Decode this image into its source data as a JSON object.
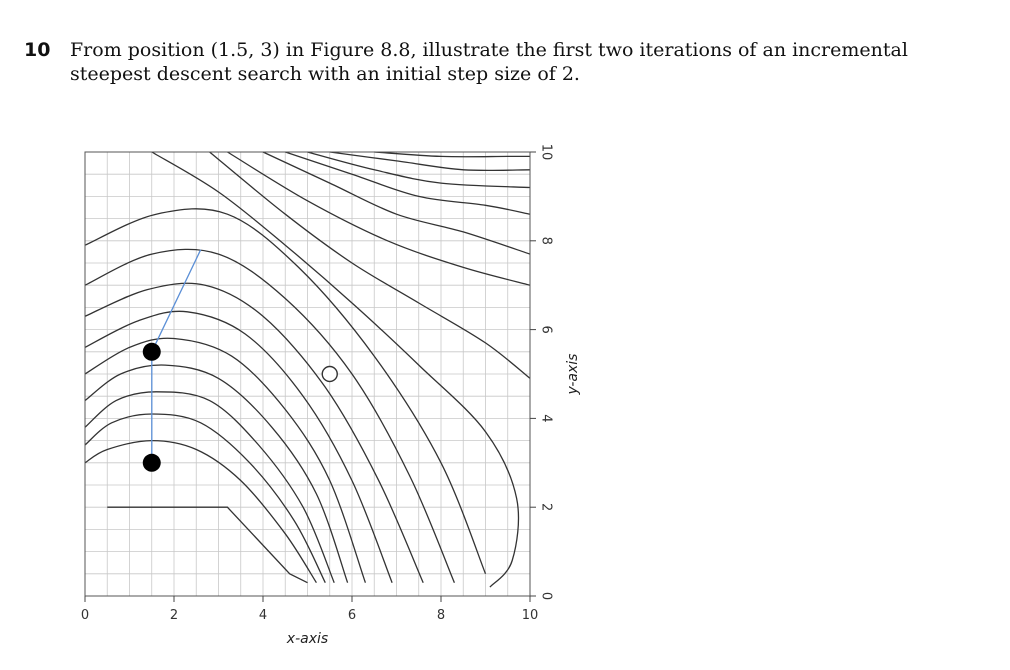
{
  "question": {
    "number": "10",
    "text": "From position (1.5, 3) in Figure 8.8, illustrate the first two iterations of an incremental steepest descent search with an initial step size of 2."
  },
  "chart_data": {
    "type": "contour",
    "xlabel": "x-axis",
    "ylabel": "y-axis",
    "xlim": [
      0,
      10
    ],
    "ylim": [
      0,
      10
    ],
    "x_ticks": [
      "0",
      "2",
      "4",
      "6",
      "8",
      "10"
    ],
    "y_ticks": [
      "0",
      "2",
      "4",
      "6",
      "8",
      "10"
    ],
    "grid": true,
    "minimum_marker": {
      "x": 5.5,
      "y": 5.0
    },
    "annotated_points": [
      {
        "x": 1.5,
        "y": 3.0
      },
      {
        "x": 1.5,
        "y": 5.5
      }
    ],
    "annotated_path": [
      {
        "x": 1.5,
        "y": 3.0
      },
      {
        "x": 1.5,
        "y": 5.5
      },
      {
        "x": 2.6,
        "y": 7.8
      }
    ],
    "path_color": "#5b8fd6",
    "contour_color": "#333333",
    "contours": [
      [
        [
          0.5,
          2
        ],
        [
          3.2,
          2
        ],
        [
          4.6,
          0.5
        ],
        [
          5.0,
          0.3
        ]
      ],
      [
        [
          0,
          3
        ],
        [
          0.5,
          3.3
        ],
        [
          1.5,
          3.5
        ],
        [
          2.5,
          3.3
        ],
        [
          3.5,
          2.6
        ],
        [
          4.5,
          1.4
        ],
        [
          5.2,
          0.3
        ]
      ],
      [
        [
          0,
          3.4
        ],
        [
          0.6,
          3.9
        ],
        [
          1.5,
          4.1
        ],
        [
          2.6,
          3.9
        ],
        [
          3.7,
          3.0
        ],
        [
          4.7,
          1.7
        ],
        [
          5.4,
          0.3
        ]
      ],
      [
        [
          0,
          3.8
        ],
        [
          0.7,
          4.4
        ],
        [
          1.6,
          4.6
        ],
        [
          2.8,
          4.4
        ],
        [
          3.9,
          3.4
        ],
        [
          4.9,
          2.0
        ],
        [
          5.6,
          0.3
        ]
      ],
      [
        [
          0,
          4.4
        ],
        [
          0.8,
          5.0
        ],
        [
          1.8,
          5.2
        ],
        [
          3.0,
          4.9
        ],
        [
          4.2,
          3.8
        ],
        [
          5.2,
          2.3
        ],
        [
          5.9,
          0.3
        ]
      ],
      [
        [
          0,
          5.0
        ],
        [
          1.0,
          5.6
        ],
        [
          2.0,
          5.8
        ],
        [
          3.3,
          5.4
        ],
        [
          4.5,
          4.2
        ],
        [
          5.5,
          2.6
        ],
        [
          6.3,
          0.3
        ]
      ],
      [
        [
          0,
          5.6
        ],
        [
          1.2,
          6.2
        ],
        [
          2.3,
          6.4
        ],
        [
          3.6,
          5.9
        ],
        [
          4.9,
          4.5
        ],
        [
          6.0,
          2.6
        ],
        [
          6.9,
          0.3
        ]
      ],
      [
        [
          0,
          6.3
        ],
        [
          1.4,
          6.9
        ],
        [
          2.7,
          7.0
        ],
        [
          4.0,
          6.3
        ],
        [
          5.4,
          4.7
        ],
        [
          6.6,
          2.6
        ],
        [
          7.6,
          0.3
        ]
      ],
      [
        [
          0,
          7.0
        ],
        [
          1.5,
          7.7
        ],
        [
          3.0,
          7.7
        ],
        [
          4.5,
          6.7
        ],
        [
          6.0,
          5.0
        ],
        [
          7.3,
          2.7
        ],
        [
          8.3,
          0.3
        ]
      ],
      [
        [
          0,
          7.9
        ],
        [
          1.6,
          8.6
        ],
        [
          3.2,
          8.6
        ],
        [
          4.8,
          7.4
        ],
        [
          6.5,
          5.4
        ],
        [
          8.0,
          3.0
        ],
        [
          9.0,
          0.5
        ]
      ],
      [
        [
          1.5,
          10
        ],
        [
          3.0,
          9.1
        ],
        [
          4.5,
          7.9
        ],
        [
          6.0,
          6.6
        ],
        [
          7.5,
          5.2
        ],
        [
          9.0,
          3.7
        ],
        [
          9.7,
          2.2
        ],
        [
          9.6,
          0.8
        ],
        [
          9.1,
          0.2
        ]
      ],
      [
        [
          2.8,
          10
        ],
        [
          4.5,
          8.6
        ],
        [
          6.0,
          7.5
        ],
        [
          7.5,
          6.6
        ],
        [
          9.0,
          5.7
        ],
        [
          10,
          4.9
        ]
      ],
      [
        [
          3.2,
          10
        ],
        [
          5.0,
          8.9
        ],
        [
          6.8,
          8.0
        ],
        [
          8.5,
          7.4
        ],
        [
          10,
          7.0
        ]
      ],
      [
        [
          4.0,
          10
        ],
        [
          5.5,
          9.3
        ],
        [
          7.0,
          8.6
        ],
        [
          8.5,
          8.2
        ],
        [
          10,
          7.7
        ]
      ],
      [
        [
          4.5,
          10
        ],
        [
          6.0,
          9.5
        ],
        [
          7.5,
          9.0
        ],
        [
          9.0,
          8.8
        ],
        [
          10,
          8.6
        ]
      ],
      [
        [
          5.0,
          10
        ],
        [
          6.5,
          9.6
        ],
        [
          8.0,
          9.3
        ],
        [
          10,
          9.2
        ]
      ],
      [
        [
          5.5,
          10
        ],
        [
          7.0,
          9.8
        ],
        [
          8.5,
          9.6
        ],
        [
          10,
          9.6
        ]
      ],
      [
        [
          6.5,
          10
        ],
        [
          8.0,
          9.9
        ],
        [
          9.5,
          9.9
        ],
        [
          10,
          9.9
        ]
      ]
    ]
  }
}
